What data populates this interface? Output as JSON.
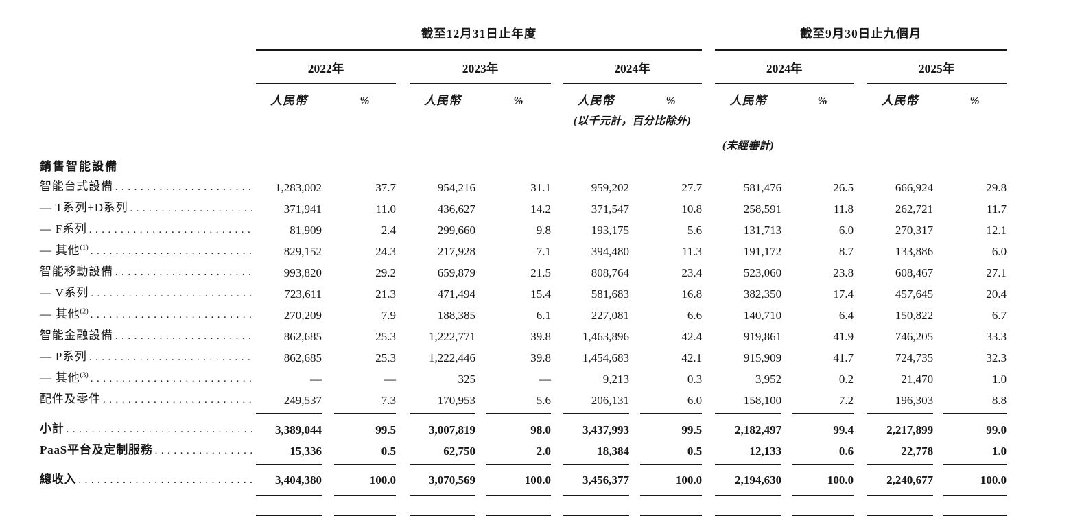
{
  "colors": {
    "text": "#171717",
    "rule": "#171717",
    "background": "#ffffff"
  },
  "header": {
    "period_annual": "截至12月31日止年度",
    "period_interim": "截至9月30日止九個月",
    "years_annual": [
      "2022年",
      "2023年",
      "2024年"
    ],
    "years_interim": [
      "2024年",
      "2025年"
    ],
    "rmb_label": "人民幣",
    "pct_label": "%",
    "thousands_note": "(以千元計，百分比除外)",
    "unaudited_note": "(未經審計)"
  },
  "table": {
    "column_keys": [
      "FY2022_RMB",
      "FY2022_%",
      "FY2023_RMB",
      "FY2023_%",
      "FY2024_RMB",
      "FY2024_%",
      "9M2024_RMB",
      "9M2024_%",
      "9M2025_RMB",
      "9M2025_%"
    ],
    "rows": [
      {
        "type": "section",
        "label": "銷售智能設備",
        "bold": true,
        "leader": false
      },
      {
        "type": "item",
        "label": "智能台式設備",
        "leader": true,
        "values": [
          "1,283,002",
          "37.7",
          "954,216",
          "31.1",
          "959,202",
          "27.7",
          "581,476",
          "26.5",
          "666,924",
          "29.8"
        ]
      },
      {
        "type": "item",
        "label": "— T系列+D系列",
        "leader": true,
        "values": [
          "371,941",
          "11.0",
          "436,627",
          "14.2",
          "371,547",
          "10.8",
          "258,591",
          "11.8",
          "262,721",
          "11.7"
        ]
      },
      {
        "type": "item",
        "label": "— F系列",
        "leader": true,
        "values": [
          "81,909",
          "2.4",
          "299,660",
          "9.8",
          "193,175",
          "5.6",
          "131,713",
          "6.0",
          "270,317",
          "12.1"
        ]
      },
      {
        "type": "item",
        "label": "— 其他",
        "sup": "(1)",
        "leader": true,
        "values": [
          "829,152",
          "24.3",
          "217,928",
          "7.1",
          "394,480",
          "11.3",
          "191,172",
          "8.7",
          "133,886",
          "6.0"
        ]
      },
      {
        "type": "item",
        "label": "智能移動設備",
        "leader": true,
        "values": [
          "993,820",
          "29.2",
          "659,879",
          "21.5",
          "808,764",
          "23.4",
          "523,060",
          "23.8",
          "608,467",
          "27.1"
        ]
      },
      {
        "type": "item",
        "label": "— V系列",
        "leader": true,
        "values": [
          "723,611",
          "21.3",
          "471,494",
          "15.4",
          "581,683",
          "16.8",
          "382,350",
          "17.4",
          "457,645",
          "20.4"
        ]
      },
      {
        "type": "item",
        "label": "— 其他",
        "sup": "(2)",
        "leader": true,
        "values": [
          "270,209",
          "7.9",
          "188,385",
          "6.1",
          "227,081",
          "6.6",
          "140,710",
          "6.4",
          "150,822",
          "6.7"
        ]
      },
      {
        "type": "item",
        "label": "智能金融設備",
        "leader": true,
        "values": [
          "862,685",
          "25.3",
          "1,222,771",
          "39.8",
          "1,463,896",
          "42.4",
          "919,861",
          "41.9",
          "746,205",
          "33.3"
        ]
      },
      {
        "type": "item",
        "label": "— P系列",
        "leader": true,
        "values": [
          "862,685",
          "25.3",
          "1,222,446",
          "39.8",
          "1,454,683",
          "42.1",
          "915,909",
          "41.7",
          "724,735",
          "32.3"
        ]
      },
      {
        "type": "item",
        "label": "— 其他",
        "sup": "(3)",
        "leader": true,
        "values": [
          "—",
          "—",
          "325",
          "—",
          "9,213",
          "0.3",
          "3,952",
          "0.2",
          "21,470",
          "1.0"
        ]
      },
      {
        "type": "item",
        "label": "配件及零件",
        "leader": true,
        "rule_after": "single",
        "values": [
          "249,537",
          "7.3",
          "170,953",
          "5.6",
          "206,131",
          "6.0",
          "158,100",
          "7.2",
          "196,303",
          "8.8"
        ]
      },
      {
        "type": "subtotal",
        "label": "小計",
        "bold": true,
        "leader": true,
        "values": [
          "3,389,044",
          "99.5",
          "3,007,819",
          "98.0",
          "3,437,993",
          "99.5",
          "2,182,497",
          "99.4",
          "2,217,899",
          "99.0"
        ]
      },
      {
        "type": "subtotal",
        "label": "PaaS平台及定制服務",
        "bold": true,
        "leader": true,
        "rule_after": "single",
        "values": [
          "15,336",
          "0.5",
          "62,750",
          "2.0",
          "18,384",
          "0.5",
          "12,133",
          "0.6",
          "22,778",
          "1.0"
        ]
      },
      {
        "type": "total",
        "label": "總收入",
        "bold": true,
        "leader": true,
        "rule_after": "double",
        "values": [
          "3,404,380",
          "100.0",
          "3,070,569",
          "100.0",
          "3,456,377",
          "100.0",
          "2,194,630",
          "100.0",
          "2,240,677",
          "100.0"
        ]
      }
    ]
  }
}
